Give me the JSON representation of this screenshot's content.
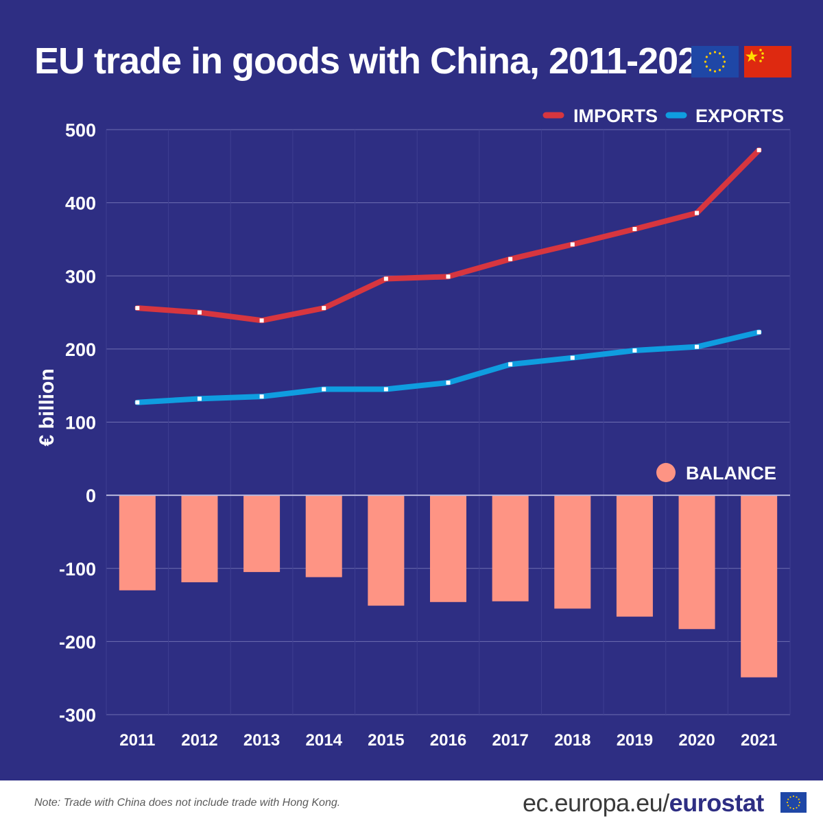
{
  "header": {
    "title": "EU trade in goods with China, 2011-2021"
  },
  "footer": {
    "note": "Note: Trade with China does not include trade with Hong Kong.",
    "site_prefix": "ec.europa.eu/",
    "site_brand": "eurostat"
  },
  "icons": {
    "flags": [
      "eu-flag-icon",
      "china-flag-icon"
    ],
    "footer": "eu-flag-icon"
  },
  "colors": {
    "background": "#2e2e83",
    "imports": "#d7363f",
    "exports": "#0f9de0",
    "balance": "#fe9484",
    "text": "#ffffff"
  },
  "chart_data": {
    "type": "bar+line",
    "title": "EU trade in goods with China, 2011-2021",
    "ylabel": "€ billion",
    "ylim": [
      -300,
      500
    ],
    "yticks": [
      500,
      400,
      300,
      200,
      100,
      0,
      -100,
      -200,
      -300
    ],
    "categories": [
      "2011",
      "2012",
      "2013",
      "2014",
      "2015",
      "2016",
      "2017",
      "2018",
      "2019",
      "2020",
      "2021"
    ],
    "grid": true,
    "legend_placement": "top-right",
    "series": [
      {
        "name": "IMPORTS",
        "kind": "line",
        "color": "#d7363f",
        "values": [
          256,
          250,
          239,
          256,
          296,
          299,
          323,
          343,
          364,
          386,
          472
        ]
      },
      {
        "name": "EXPORTS",
        "kind": "line",
        "color": "#0f9de0",
        "values": [
          127,
          132,
          135,
          145,
          145,
          154,
          179,
          188,
          198,
          203,
          223
        ]
      },
      {
        "name": "BALANCE",
        "kind": "bar",
        "color": "#fe9484",
        "values": [
          -130,
          -119,
          -105,
          -112,
          -151,
          -146,
          -145,
          -155,
          -166,
          -183,
          -249
        ]
      }
    ]
  }
}
